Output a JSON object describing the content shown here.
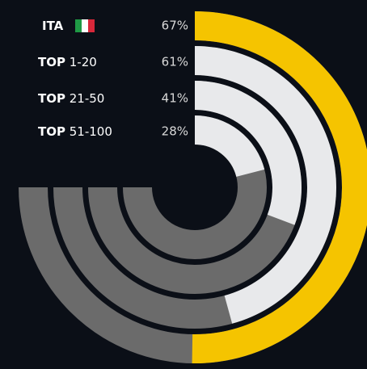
{
  "chart_data": {
    "type": "radial_bar",
    "ylim": [
      0,
      100
    ],
    "colors": {
      "value": [
        "#f5c400",
        "#e8e9eb",
        "#e8e9eb",
        "#e8e9eb"
      ],
      "track": "#6b6b6b"
    },
    "series": [
      {
        "prefix": "ITA",
        "range": null,
        "value": 67,
        "value_label": "67%"
      },
      {
        "prefix": "TOP",
        "range": "1-20",
        "value": 61,
        "value_label": "61%"
      },
      {
        "prefix": "TOP",
        "range": "21-50",
        "value": 41,
        "value_label": "41%"
      },
      {
        "prefix": "TOP",
        "range": "51-100",
        "value": 28,
        "value_label": "28%"
      }
    ]
  }
}
